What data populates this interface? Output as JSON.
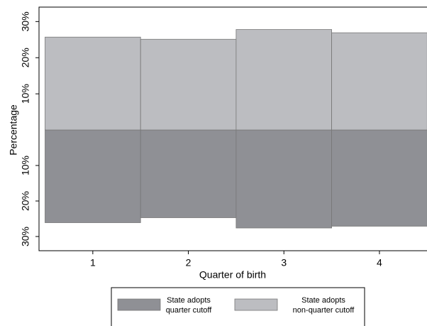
{
  "chart_data": {
    "type": "mirror_bar",
    "categories": [
      "1",
      "2",
      "3",
      "4"
    ],
    "x_label": "Quarter of birth",
    "y_label": "Percentage",
    "series": [
      {
        "name": "State adopts\nquarter cutoff",
        "color": "#8f9095",
        "side": "down",
        "values": [
          26.1,
          24.7,
          27.6,
          27.1
        ]
      },
      {
        "name": "State adopts\nnon-quarter cutoff",
        "color": "#bcbdc1",
        "side": "up",
        "values": [
          25.7,
          25.1,
          27.8,
          26.9
        ]
      }
    ],
    "ylim": [
      0,
      34
    ],
    "yticks": [
      {
        "value": 10,
        "label": "10%"
      },
      {
        "value": 20,
        "label": "20%"
      },
      {
        "value": 30,
        "label": "30%"
      }
    ],
    "y2lim": [
      0,
      34
    ],
    "y2ticks": [
      {
        "value": 10,
        "label": "10%"
      },
      {
        "value": 20,
        "label": "20%"
      },
      {
        "value": 30,
        "label": "30%"
      }
    ]
  }
}
